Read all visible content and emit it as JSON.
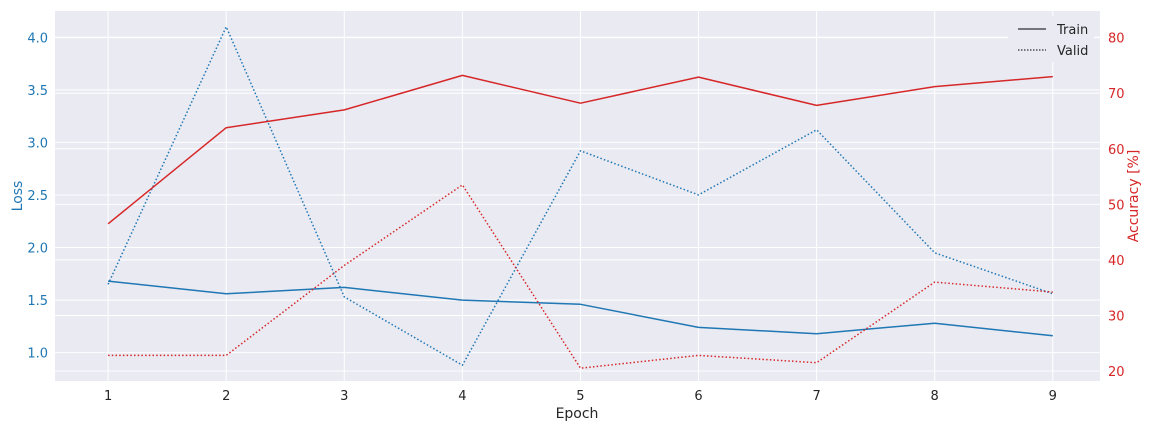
{
  "chart_data": {
    "type": "line",
    "x": [
      1,
      2,
      3,
      4,
      5,
      6,
      7,
      8,
      9
    ],
    "xlabel": "Epoch",
    "xlim": [
      0.55,
      9.4
    ],
    "y_left": {
      "label": "Loss",
      "lim": [
        0.73,
        4.25
      ],
      "ticks": [
        1.0,
        1.5,
        2.0,
        2.5,
        3.0,
        3.5,
        4.0
      ],
      "color": "#1f77b4"
    },
    "y_right": {
      "label": "Accuracy [%]",
      "lim": [
        18.2,
        84.8
      ],
      "ticks": [
        20,
        30,
        40,
        50,
        60,
        70,
        80
      ],
      "color": "#d62728"
    },
    "series": [
      {
        "key": "train_loss",
        "axis": "left",
        "style": "solid",
        "color": "#1f77b4",
        "values": [
          1.68,
          1.56,
          1.62,
          1.5,
          1.46,
          1.24,
          1.18,
          1.28,
          1.16
        ]
      },
      {
        "key": "valid_loss",
        "axis": "left",
        "style": "dotted",
        "color": "#1f77b4",
        "values": [
          1.65,
          4.1,
          1.53,
          0.88,
          2.92,
          2.5,
          3.12,
          1.95,
          1.56
        ]
      },
      {
        "key": "train_acc",
        "axis": "right",
        "style": "solid",
        "color": "#d62728",
        "values": [
          46.5,
          63.8,
          67.0,
          73.2,
          68.2,
          72.9,
          67.8,
          71.2,
          73.0
        ]
      },
      {
        "key": "valid_acc",
        "axis": "right",
        "style": "dotted",
        "color": "#d62728",
        "values": [
          22.8,
          22.8,
          39.0,
          53.5,
          20.5,
          22.8,
          21.5,
          36.0,
          34.2
        ]
      }
    ],
    "legend": {
      "position": "top-right",
      "entries": [
        {
          "label": "Train",
          "style": "solid"
        },
        {
          "label": "Valid",
          "style": "dotted"
        }
      ]
    },
    "grid": true
  }
}
